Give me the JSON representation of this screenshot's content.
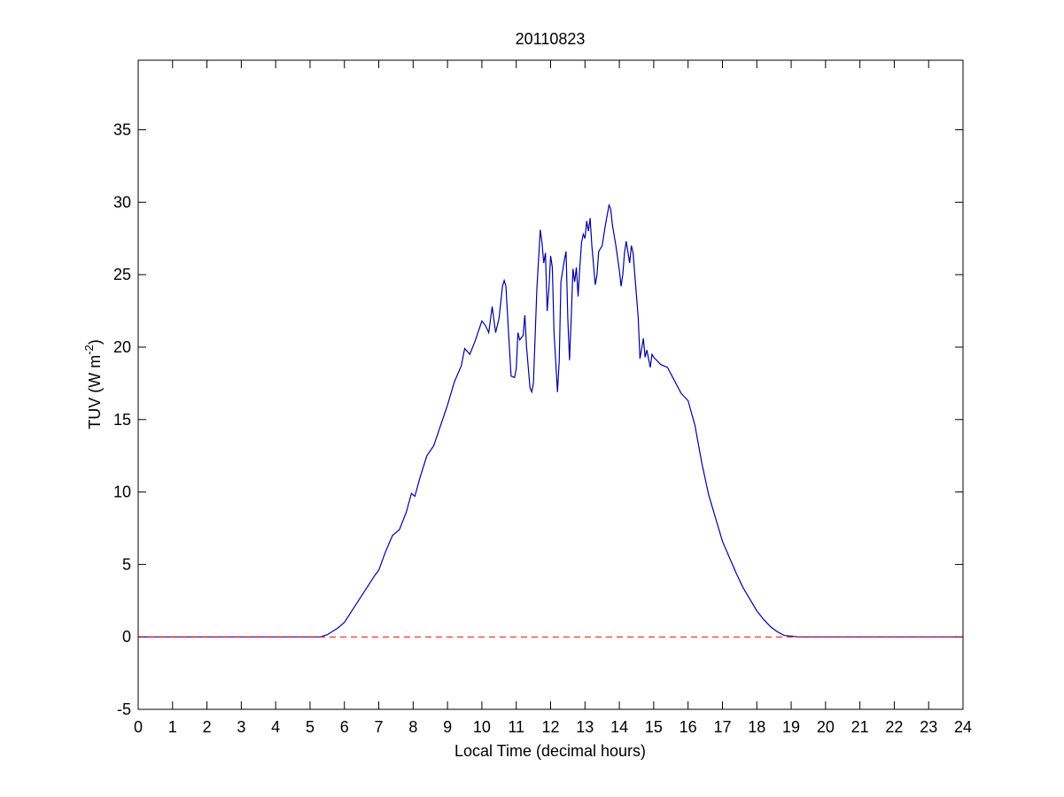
{
  "chart_data": {
    "type": "line",
    "title": "20110823",
    "xlabel": "Local Time (decimal hours)",
    "ylabel": {
      "text": "TUV (W m",
      "sup": "-2",
      "end": ")"
    },
    "xlim": [
      0,
      24
    ],
    "ylim": [
      -5,
      39.8
    ],
    "xticks": [
      0,
      1,
      2,
      3,
      4,
      5,
      6,
      7,
      8,
      9,
      10,
      11,
      12,
      13,
      14,
      15,
      16,
      17,
      18,
      19,
      20,
      21,
      22,
      23,
      24
    ],
    "yticks": [
      -5,
      0,
      5,
      10,
      15,
      20,
      25,
      30,
      35
    ],
    "reference_line": {
      "value": 0,
      "color": "#ff0000",
      "dashed": true
    },
    "grid": false,
    "series": [
      {
        "color": "#0000a0",
        "x": [
          0,
          5.3,
          5.5,
          5.8,
          6.0,
          6.3,
          6.6,
          6.9,
          7.0,
          7.2,
          7.4,
          7.6,
          7.8,
          7.95,
          8.05,
          8.2,
          8.4,
          8.6,
          8.8,
          9.0,
          9.2,
          9.4,
          9.5,
          9.65,
          9.8,
          10.0,
          10.1,
          10.2,
          10.3,
          10.4,
          10.5,
          10.6,
          10.65,
          10.7,
          10.8,
          10.85,
          10.95,
          11.0,
          11.05,
          11.1,
          11.2,
          11.25,
          11.3,
          11.4,
          11.45,
          11.5,
          11.6,
          11.7,
          11.75,
          11.8,
          11.85,
          11.9,
          11.95,
          12.0,
          12.05,
          12.1,
          12.2,
          12.25,
          12.3,
          12.4,
          12.45,
          12.5,
          12.55,
          12.6,
          12.65,
          12.7,
          12.75,
          12.8,
          12.85,
          12.9,
          12.95,
          13.0,
          13.05,
          13.1,
          13.15,
          13.2,
          13.3,
          13.35,
          13.4,
          13.5,
          13.6,
          13.7,
          13.75,
          13.8,
          13.9,
          14.0,
          14.05,
          14.1,
          14.15,
          14.2,
          14.3,
          14.35,
          14.4,
          14.5,
          14.55,
          14.6,
          14.7,
          14.75,
          14.8,
          14.9,
          14.95,
          15.0,
          15.2,
          15.4,
          15.6,
          15.8,
          16.0,
          16.2,
          16.4,
          16.6,
          16.8,
          17.0,
          17.2,
          17.4,
          17.6,
          17.8,
          18.0,
          18.2,
          18.4,
          18.6,
          18.8,
          19.0,
          19.2,
          24
        ],
        "values": [
          0,
          0,
          0.15,
          0.6,
          1.0,
          2.1,
          3.2,
          4.3,
          4.6,
          5.9,
          7.0,
          7.4,
          8.6,
          9.9,
          9.7,
          11.0,
          12.5,
          13.2,
          14.6,
          16.0,
          17.6,
          18.7,
          19.9,
          19.5,
          20.4,
          21.8,
          21.5,
          21.0,
          22.8,
          21.0,
          22.0,
          24.2,
          24.6,
          24.2,
          20.0,
          18.0,
          17.9,
          18.5,
          21.0,
          20.5,
          20.8,
          22.2,
          20.0,
          17.2,
          16.9,
          17.5,
          24.0,
          28.1,
          27.2,
          25.8,
          26.5,
          22.5,
          24.0,
          26.3,
          25.5,
          21.0,
          16.9,
          19.0,
          24.5,
          26.0,
          26.6,
          22.0,
          19.1,
          22.0,
          25.4,
          24.5,
          25.5,
          23.5,
          25.5,
          27.2,
          27.8,
          27.5,
          28.7,
          28.0,
          28.9,
          27.0,
          24.3,
          25.0,
          26.6,
          27.0,
          28.5,
          29.8,
          29.5,
          28.4,
          27.0,
          25.3,
          24.2,
          25.0,
          26.5,
          27.3,
          25.8,
          27.0,
          26.5,
          23.5,
          22.0,
          19.2,
          20.6,
          19.3,
          19.8,
          18.6,
          19.5,
          19.3,
          18.8,
          18.6,
          17.7,
          16.8,
          16.3,
          14.6,
          12.0,
          9.8,
          8.2,
          6.6,
          5.5,
          4.4,
          3.4,
          2.6,
          1.8,
          1.2,
          0.7,
          0.35,
          0.1,
          0.05,
          0,
          0
        ]
      }
    ]
  }
}
